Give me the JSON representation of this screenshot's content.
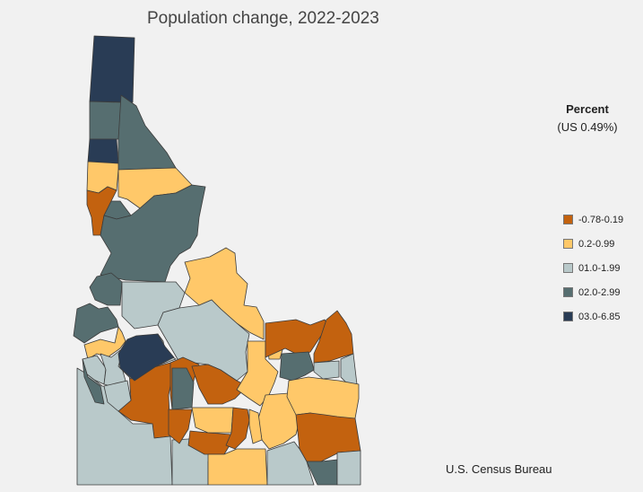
{
  "title": "Population change, 2022-2023",
  "legend": {
    "heading": "Percent",
    "subheading": "(US 0.49%)",
    "classes": [
      {
        "label": "-0.78-0.19",
        "color": "#c3620f"
      },
      {
        "label": "0.2-0.99",
        "color": "#ffc869"
      },
      {
        "label": "01.0-1.99",
        "color": "#b9c9ca"
      },
      {
        "label": "02.0-2.99",
        "color": "#566e70"
      },
      {
        "label": "03.0-6.85",
        "color": "#293c55"
      }
    ]
  },
  "regions": [
    {
      "class": 4
    },
    {
      "class": 3
    },
    {
      "class": 4
    },
    {
      "class": 3
    },
    {
      "class": 1
    },
    {
      "class": 1
    },
    {
      "class": 0
    },
    {
      "class": 3
    },
    {
      "class": 3
    },
    {
      "class": 3
    },
    {
      "class": 2
    },
    {
      "class": 3
    },
    {
      "class": 1
    },
    {
      "class": 1
    },
    {
      "class": 2
    },
    {
      "class": 2
    },
    {
      "class": 0
    },
    {
      "class": 2
    },
    {
      "class": 2
    },
    {
      "class": 3
    },
    {
      "class": 2
    },
    {
      "class": 4
    },
    {
      "class": 2
    },
    {
      "class": 2
    },
    {
      "class": 0
    },
    {
      "class": 3
    },
    {
      "class": 0
    },
    {
      "class": 1
    },
    {
      "class": 0
    },
    {
      "class": 0
    },
    {
      "class": 1
    },
    {
      "class": 1
    },
    {
      "class": 1
    },
    {
      "class": 0
    },
    {
      "class": 3
    },
    {
      "class": 0
    },
    {
      "class": 2
    },
    {
      "class": 2
    },
    {
      "class": 0
    },
    {
      "class": 1
    },
    {
      "class": 1
    },
    {
      "class": 0
    },
    {
      "class": 3
    },
    {
      "class": 2
    },
    {
      "class": 2
    },
    {
      "class": 1
    }
  ],
  "source": "U.S. Census Bureau"
}
